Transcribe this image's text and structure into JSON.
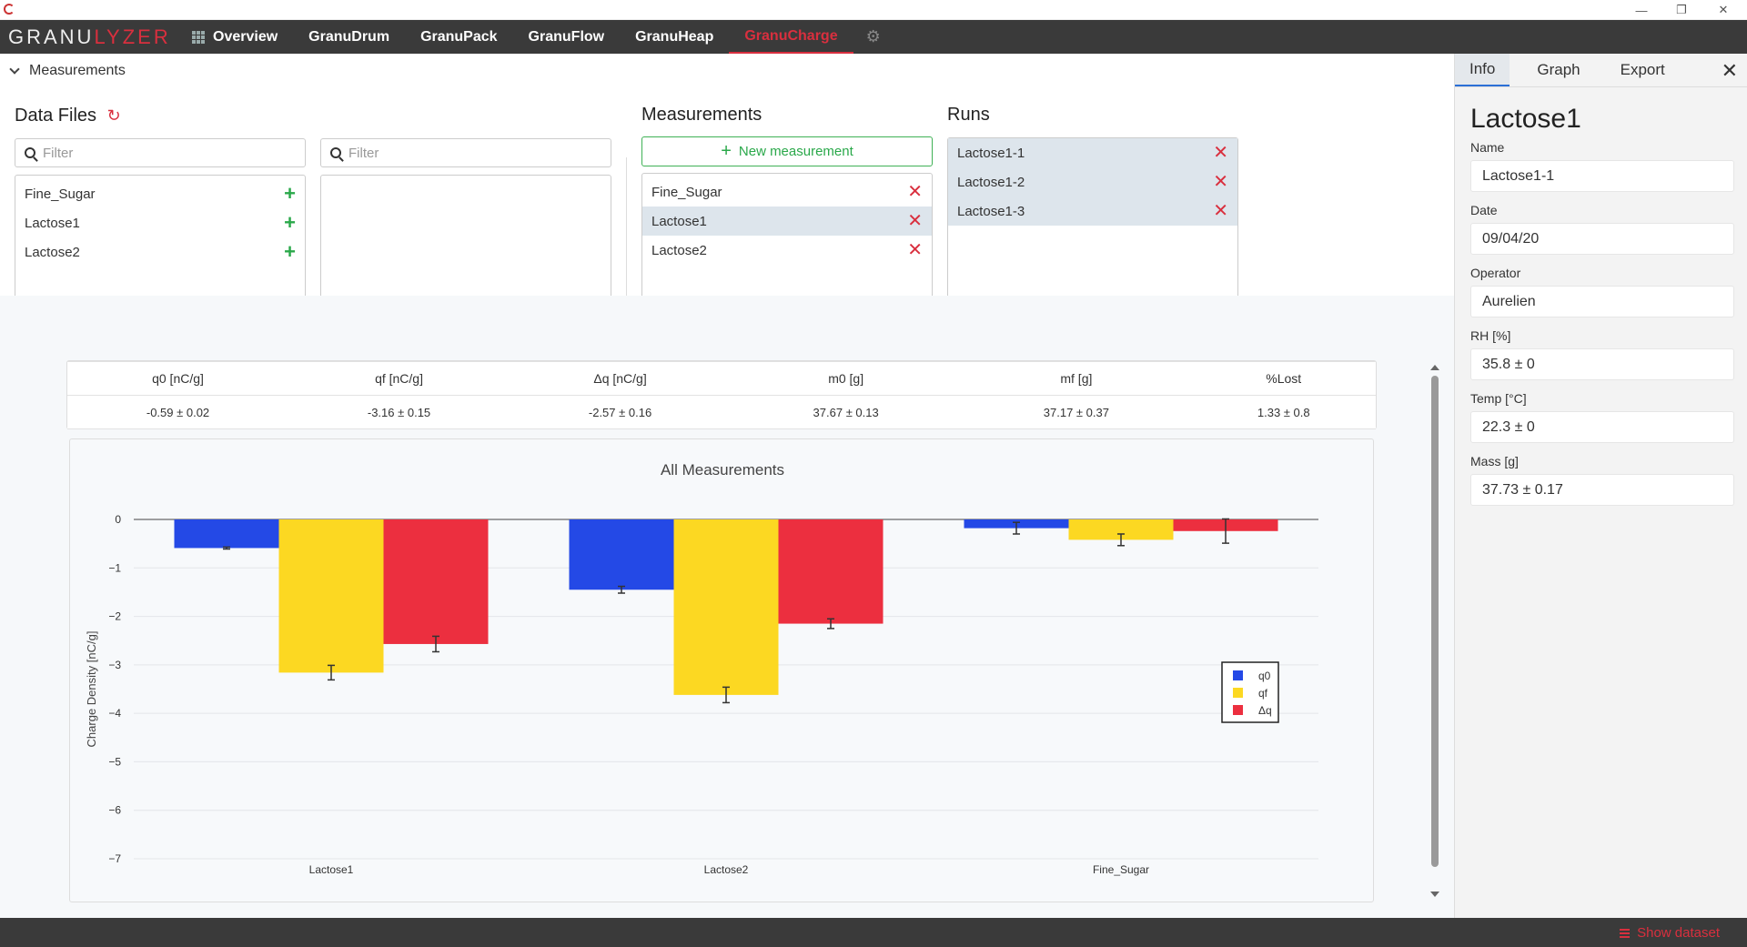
{
  "window": {
    "minimize": "—",
    "restore": "❐",
    "close": "✕"
  },
  "logo": {
    "part1": "GRANU",
    "part2": "LYZER"
  },
  "nav": {
    "items": [
      {
        "label": "Overview"
      },
      {
        "label": "GranuDrum"
      },
      {
        "label": "GranuPack"
      },
      {
        "label": "GranuFlow"
      },
      {
        "label": "GranuHeap"
      },
      {
        "label": "GranuCharge"
      }
    ],
    "active": "GranuCharge",
    "settings_icon": "gear-icon"
  },
  "breadcrumb": "Measurements",
  "data_files": {
    "title": "Data Files",
    "filter_placeholder": "Filter",
    "filter2_placeholder": "Filter",
    "items": [
      "Fine_Sugar",
      "Lactose1",
      "Lactose2"
    ]
  },
  "measurements": {
    "title": "Measurements",
    "new_label": "New measurement",
    "items": [
      "Fine_Sugar",
      "Lactose1",
      "Lactose2"
    ],
    "selected": "Lactose1"
  },
  "runs": {
    "title": "Runs",
    "items": [
      "Lactose1-1",
      "Lactose1-2",
      "Lactose1-3"
    ]
  },
  "stats": {
    "headers": [
      "q0 [nC/g]",
      "qf [nC/g]",
      "Δq [nC/g]",
      "m0 [g]",
      "mf [g]",
      "%Lost"
    ],
    "values": [
      "-0.59 ± 0.02",
      "-3.16 ± 0.15",
      "-2.57 ± 0.16",
      "37.67 ± 0.13",
      "37.17 ± 0.37",
      "1.33 ± 0.8"
    ]
  },
  "sidebar": {
    "tabs": [
      "Info",
      "Graph",
      "Export"
    ],
    "active_tab": "Info",
    "title": "Lactose1",
    "fields": [
      {
        "label": "Name",
        "value": "Lactose1-1"
      },
      {
        "label": "Date",
        "value": "09/04/20"
      },
      {
        "label": "Operator",
        "value": "Aurelien"
      },
      {
        "label": "RH [%]",
        "value": "35.8 ± 0"
      },
      {
        "label": "Temp [°C]",
        "value": "22.3 ± 0"
      },
      {
        "label": "Mass [g]",
        "value": "37.73 ± 0.17"
      }
    ]
  },
  "status": {
    "show_dataset": "Show dataset"
  },
  "colors": {
    "accent": "#d92f3e",
    "q0": "#2449e6",
    "qf": "#fcd822",
    "dq": "#ec2f3f",
    "green": "#2aa84a"
  },
  "chart_data": {
    "type": "bar",
    "title": "All Measurements",
    "xlabel": "",
    "ylabel": "Charge Density [nC/g]",
    "ylim": [
      -7,
      0
    ],
    "yticks": [
      0,
      -1,
      -2,
      -3,
      -4,
      -5,
      -6,
      -7
    ],
    "categories": [
      "Lactose1",
      "Lactose2",
      "Fine_Sugar"
    ],
    "series": [
      {
        "name": "q0",
        "color": "#2449e6",
        "values": [
          -0.59,
          -1.45,
          -0.18
        ],
        "errors": [
          0.02,
          0.07,
          0.12
        ]
      },
      {
        "name": "qf",
        "color": "#fcd822",
        "values": [
          -3.16,
          -3.62,
          -0.42
        ],
        "errors": [
          0.15,
          0.16,
          0.12
        ]
      },
      {
        "name": "Δq",
        "color": "#ec2f3f",
        "values": [
          -2.57,
          -2.15,
          -0.24
        ],
        "errors": [
          0.16,
          0.1,
          0.25
        ]
      }
    ],
    "legend": "right"
  }
}
